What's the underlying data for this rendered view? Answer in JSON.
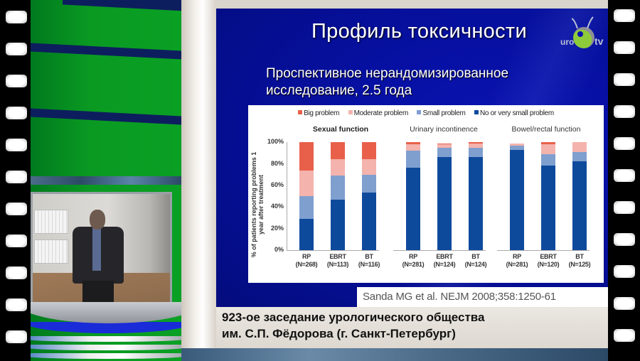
{
  "slide": {
    "title": "Профиль токсичности",
    "subtitle_line1": "Проспективное нерандомизированное",
    "subtitle_line2": "исследование, 2.5 года",
    "citation": "Sanda MG et al. NEJM 2008;358:1250-61",
    "logo": {
      "left_text": "uro",
      "right_text": "tv"
    }
  },
  "caption": {
    "line1": "923-ое заседание урологического общества",
    "line2": "им. С.П. Фёдорова (г. Санкт-Петербург)"
  },
  "colors": {
    "big_problem": "#e8604a",
    "moderate_problem": "#f4b3ad",
    "small_problem": "#7f9fcf",
    "no_problem": "#0e4a9c",
    "slide_bg": "#0610a0",
    "studio_green": "#0a9a22"
  },
  "chart_data": {
    "type": "bar",
    "stacked": true,
    "title": "",
    "ylabel": "% of patients reporting problems 1 year after treatment",
    "ylim": [
      0,
      100
    ],
    "yticks": [
      "0%",
      "20%",
      "40%",
      "60%",
      "80%",
      "100%"
    ],
    "legend": [
      "Big problem",
      "Moderate problem",
      "Small problem",
      "No or very small problem"
    ],
    "legend_position": "top",
    "panels": [
      {
        "title": "Sexual function",
        "categories": [
          "RP",
          "EBRT",
          "BT"
        ],
        "n_labels": [
          "(N=268)",
          "(N=113)",
          "(N=116)"
        ],
        "series": [
          {
            "name": "No or very small problem",
            "values": [
              29,
              47,
              53
            ]
          },
          {
            "name": "Small problem",
            "values": [
              21,
              22,
              17
            ]
          },
          {
            "name": "Moderate problem",
            "values": [
              24,
              15,
              14
            ]
          },
          {
            "name": "Big problem",
            "values": [
              26,
              16,
              16
            ]
          }
        ]
      },
      {
        "title": "Urinary incontinence",
        "categories": [
          "RP",
          "EBRT",
          "BT"
        ],
        "n_labels": [
          "(N=281)",
          "(N=124)",
          "(N=124)"
        ],
        "series": [
          {
            "name": "No or very small problem",
            "values": [
              76,
              86,
              86
            ]
          },
          {
            "name": "Small problem",
            "values": [
              16,
              9,
              9
            ]
          },
          {
            "name": "Moderate problem",
            "values": [
              6,
              3,
              4
            ]
          },
          {
            "name": "Big problem",
            "values": [
              2,
              1,
              1
            ]
          }
        ]
      },
      {
        "title": "Bowel/rectal function",
        "categories": [
          "RP",
          "EBRT",
          "BT"
        ],
        "n_labels": [
          "(N=281)",
          "(N=120)",
          "(N=125)"
        ],
        "series": [
          {
            "name": "No or very small problem",
            "values": [
              93,
              78,
              82
            ]
          },
          {
            "name": "Small problem",
            "values": [
              4,
              11,
              9
            ]
          },
          {
            "name": "Moderate problem",
            "values": [
              2,
              9,
              9
            ]
          },
          {
            "name": "Big problem",
            "values": [
              0,
              2,
              0
            ]
          }
        ]
      }
    ]
  }
}
